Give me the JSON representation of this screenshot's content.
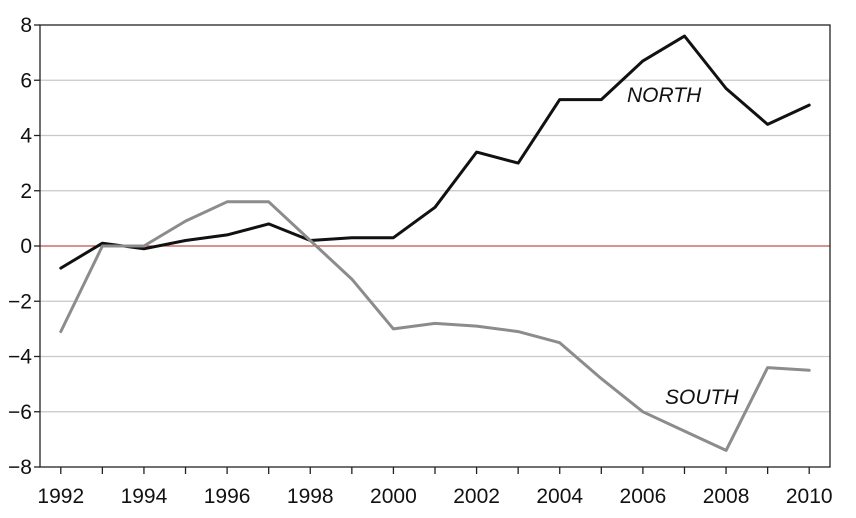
{
  "chart_data": {
    "type": "line",
    "title": "",
    "xlabel": "",
    "ylabel": "",
    "xlim": [
      1991.5,
      2010.5
    ],
    "ylim": [
      -8,
      8
    ],
    "x_ticks": [
      1992,
      1994,
      1996,
      1998,
      2000,
      2002,
      2004,
      2006,
      2008,
      2010
    ],
    "y_ticks": [
      8,
      6,
      4,
      2,
      0,
      -2,
      -4,
      -6,
      -8
    ],
    "grid": true,
    "zero_line_color": "#c0504d",
    "grid_color": "#c8c8c8",
    "series": [
      {
        "name": "NORTH",
        "color": "#111111",
        "x": [
          1992,
          1993,
          1994,
          1995,
          1996,
          1997,
          1998,
          1999,
          2000,
          2001,
          2002,
          2003,
          2004,
          2005,
          2006,
          2007,
          2008,
          2009,
          2010
        ],
        "y": [
          -0.8,
          0.1,
          -0.1,
          0.2,
          0.4,
          0.8,
          0.2,
          0.3,
          0.3,
          1.4,
          3.4,
          3.0,
          5.3,
          5.3,
          6.7,
          7.6,
          5.7,
          4.4,
          5.1
        ]
      },
      {
        "name": "SOUTH",
        "color": "#8c8c8c",
        "x": [
          1992,
          1993,
          1994,
          1995,
          1996,
          1997,
          1998,
          1999,
          2000,
          2001,
          2002,
          2003,
          2004,
          2005,
          2006,
          2007,
          2008,
          2009,
          2010
        ],
        "y": [
          -3.1,
          0.0,
          0.0,
          0.9,
          1.6,
          1.6,
          0.2,
          -1.2,
          -3.0,
          -2.8,
          -2.9,
          -3.1,
          -3.5,
          -4.8,
          -6.0,
          -6.7,
          -7.4,
          -4.4,
          -4.5
        ]
      }
    ]
  }
}
